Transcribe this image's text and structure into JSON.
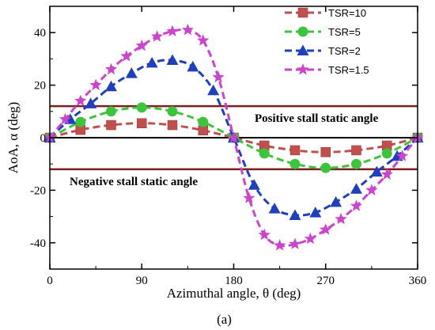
{
  "chart_data": {
    "type": "line",
    "title": "",
    "xlabel": "Azimuthal angle,  θ (deg)",
    "ylabel": "AoA,  α (deg)",
    "xlim": [
      0,
      360
    ],
    "ylim": [
      -50,
      50
    ],
    "xticks": [
      0,
      90,
      180,
      270,
      360
    ],
    "yticks": [
      -40,
      -20,
      0,
      20,
      40
    ],
    "grid": false,
    "legend_position": "top-right",
    "series": [
      {
        "name": "TSR=10",
        "color": "#c0504d",
        "marker": "square",
        "x": [
          0,
          30,
          60,
          90,
          120,
          150,
          180,
          210,
          240,
          270,
          300,
          330,
          360
        ],
        "y": [
          0,
          3,
          4.8,
          5.5,
          4.8,
          2.8,
          0,
          -3,
          -4.8,
          -5.5,
          -4.8,
          -3,
          0
        ]
      },
      {
        "name": "TSR=5",
        "color": "#3cc43c",
        "marker": "circle",
        "x": [
          0,
          30,
          60,
          90,
          120,
          150,
          180,
          210,
          240,
          270,
          300,
          330,
          360
        ],
        "y": [
          0,
          6,
          10,
          11.5,
          10,
          6,
          0,
          -6,
          -10,
          -11.5,
          -10,
          -6,
          0
        ]
      },
      {
        "name": "TSR=2",
        "color": "#1f3fbf",
        "marker": "triangle",
        "x": [
          0,
          20,
          40,
          60,
          80,
          100,
          120,
          140,
          160,
          180,
          200,
          220,
          240,
          260,
          280,
          300,
          320,
          340,
          360
        ],
        "y": [
          0,
          7,
          13,
          19.5,
          24.5,
          28.5,
          29.5,
          27,
          18,
          0,
          -18,
          -27,
          -29.5,
          -28.5,
          -24.5,
          -19.5,
          -13,
          -7,
          0
        ]
      },
      {
        "name": "TSR=1.5",
        "color": "#cc44cc",
        "marker": "star",
        "x": [
          0,
          15,
          30,
          45,
          60,
          75,
          90,
          105,
          120,
          135,
          150,
          165,
          180,
          195,
          210,
          225,
          240,
          255,
          270,
          285,
          300,
          315,
          330,
          345,
          360
        ],
        "y": [
          0,
          7,
          14,
          20,
          26,
          31,
          35,
          38.5,
          40.5,
          41,
          37,
          23,
          0,
          -23,
          -37,
          -41,
          -40.5,
          -38.5,
          -35,
          -31,
          -26,
          -20,
          -14,
          -7,
          0
        ]
      }
    ],
    "reference_lines": [
      {
        "label": "Positive stall static angle",
        "y": 12
      },
      {
        "label": "Negative stall static angle",
        "y": -12
      }
    ],
    "caption": "(a)"
  }
}
